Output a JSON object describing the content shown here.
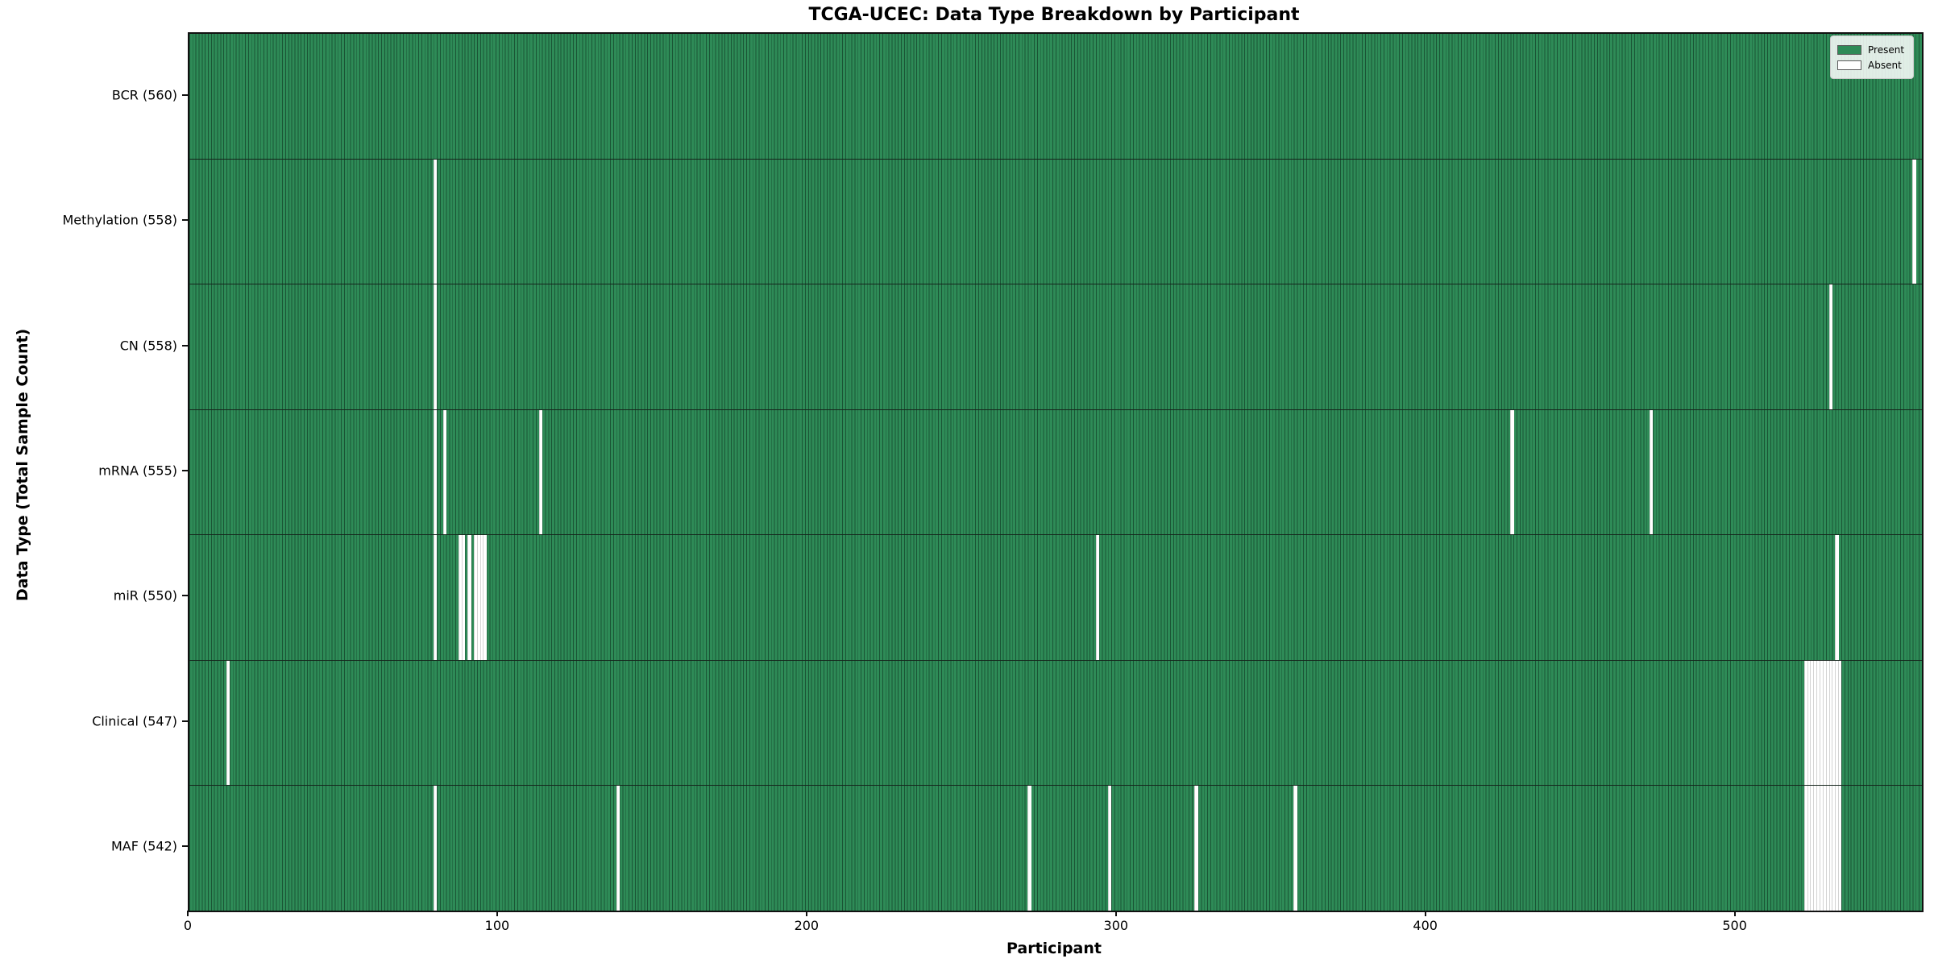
{
  "chart_data": {
    "type": "heatmap",
    "title": "TCGA-UCEC: Data Type Breakdown by Participant",
    "xlabel": "Participant",
    "ylabel": "Data Type (Total Sample Count)",
    "n_participants": 560,
    "x_ticks": [
      0,
      100,
      200,
      300,
      400,
      500
    ],
    "legend_position": "upper right",
    "grid": false,
    "colors": {
      "present": "#2e8b57",
      "absent": "#ffffff",
      "bar_edge": "#1d4f34",
      "absent_edge": "#d4d4d4"
    },
    "rows": [
      {
        "label": "BCR",
        "count": 560,
        "display": "BCR (560)",
        "absent_participants": []
      },
      {
        "label": "Methylation",
        "count": 558,
        "display": "Methylation (558)",
        "absent_participants": [
          79,
          557
        ]
      },
      {
        "label": "CN",
        "count": 558,
        "display": "CN (558)",
        "absent_participants": [
          79,
          530
        ]
      },
      {
        "label": "mRNA",
        "count": 555,
        "display": "mRNA (555)",
        "absent_participants": [
          79,
          82,
          113,
          427,
          472
        ]
      },
      {
        "label": "miR",
        "count": 550,
        "display": "miR (550)",
        "absent_participants": [
          79,
          87,
          88,
          90,
          92,
          93,
          94,
          95,
          293,
          532
        ]
      },
      {
        "label": "Clinical",
        "count": 547,
        "display": "Clinical (547)",
        "absent_participants": [
          12,
          522,
          523,
          524,
          525,
          526,
          527,
          528,
          529,
          530,
          531,
          532,
          533
        ]
      },
      {
        "label": "MAF",
        "count": 542,
        "display": "MAF (542)",
        "absent_participants": [
          79,
          138,
          271,
          297,
          325,
          357,
          522,
          523,
          524,
          525,
          526,
          527,
          528,
          529,
          530,
          531,
          532,
          533
        ]
      }
    ]
  },
  "legend": {
    "items": [
      {
        "label": "Present",
        "color": "#2e8b57"
      },
      {
        "label": "Absent",
        "color": "#ffffff"
      }
    ]
  }
}
